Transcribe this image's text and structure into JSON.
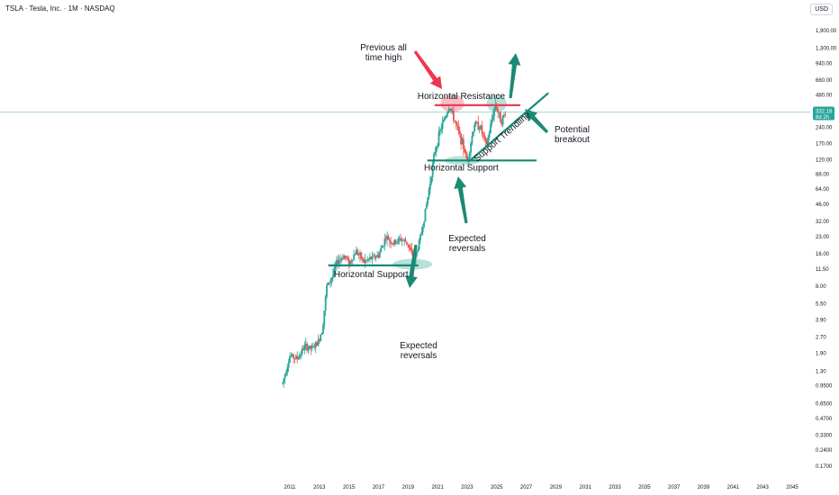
{
  "header": {
    "title": "TSLA · Tesla, Inc. · 1M · NASDAQ",
    "currency": "USD"
  },
  "chart_data": {
    "type": "candlestick",
    "title": "TSLA · Tesla, Inc. · 1M · NASDAQ",
    "y_scale": "log",
    "ylim": [
      0.15,
      3000
    ],
    "xlim": [
      2010.0,
      2046.0
    ],
    "y_ticks": [
      "1,900.00",
      "1,300.00",
      "940.00",
      "660.00",
      "480.00",
      "240.00",
      "170.00",
      "120.00",
      "88.00",
      "64.00",
      "46.00",
      "32.00",
      "23.00",
      "16.00",
      "11.50",
      "8.00",
      "5.50",
      "3.90",
      "2.70",
      "1.90",
      "1.30",
      "0.9500",
      "0.6500",
      "0.4700",
      "0.3300",
      "0.2400",
      "0.1700"
    ],
    "x_ticks": [
      "2011",
      "2013",
      "2015",
      "2017",
      "2019",
      "2021",
      "2023",
      "2025",
      "2027",
      "2029",
      "2031",
      "2033",
      "2035",
      "2037",
      "2039",
      "2041",
      "2043",
      "2045"
    ],
    "last_price": {
      "value": 332.18,
      "label": "332.18",
      "countdown": "8d 2h"
    },
    "price_series": [
      [
        2010.5,
        1.0
      ],
      [
        2011.0,
        1.8
      ],
      [
        2011.5,
        1.7
      ],
      [
        2012.0,
        2.2
      ],
      [
        2012.5,
        2.1
      ],
      [
        2012.9,
        2.4
      ],
      [
        2013.2,
        3.2
      ],
      [
        2013.5,
        8.0
      ],
      [
        2013.9,
        10.0
      ],
      [
        2014.2,
        13.5
      ],
      [
        2014.7,
        15.5
      ],
      [
        2015.0,
        13.0
      ],
      [
        2015.5,
        17.0
      ],
      [
        2016.0,
        13.5
      ],
      [
        2016.5,
        14.5
      ],
      [
        2017.0,
        15.5
      ],
      [
        2017.5,
        23.0
      ],
      [
        2018.0,
        20.0
      ],
      [
        2018.5,
        22.0
      ],
      [
        2019.0,
        20.0
      ],
      [
        2019.4,
        13.0
      ],
      [
        2019.9,
        25.0
      ],
      [
        2020.3,
        50.0
      ],
      [
        2020.8,
        140.0
      ],
      [
        2021.2,
        230.0
      ],
      [
        2021.8,
        380.0
      ],
      [
        2022.3,
        240.0
      ],
      [
        2022.8,
        150.0
      ],
      [
        2023.0,
        115.0
      ],
      [
        2023.5,
        260.0
      ],
      [
        2023.9,
        240.0
      ],
      [
        2024.3,
        160.0
      ],
      [
        2024.9,
        400.0
      ],
      [
        2025.3,
        270.0
      ],
      [
        2025.6,
        332.18
      ]
    ],
    "annotations": {
      "horizontal_resistance": {
        "label": "Horizontal Resistance",
        "price": 385.0,
        "x": [
          2020.8,
          2026.6
        ]
      },
      "horizontal_support_upper": {
        "label": "Horizontal Support",
        "price": 118.0,
        "x": [
          2020.3,
          2027.7
        ]
      },
      "horizontal_support_lower": {
        "label": "Horizontal Support",
        "price": 12.5,
        "x": [
          2013.6,
          2019.7
        ]
      },
      "support_trendline": {
        "label": "Support Trendline",
        "start": [
          2023.2,
          118.0
        ],
        "end": [
          2028.5,
          500.0
        ]
      },
      "previous_ath_text": [
        "Previous all",
        "time high"
      ],
      "expected_reversals_upper": [
        "Expected",
        "reversals"
      ],
      "expected_reversals_lower": [
        "Expected",
        "reversals"
      ],
      "potential_breakout": [
        "Potential",
        "breakout"
      ]
    }
  },
  "colors": {
    "up": "#26a69a",
    "down": "#ef5350",
    "arrow_green": "#1b8a74",
    "arrow_red": "#f0364d",
    "resistance_line": "#e83f55",
    "support_line": "#158a73",
    "highlight_green": "#a9d9cd",
    "highlight_red": "#f5a9b4",
    "price_tag": "#26a69a",
    "price_line": "#9bd3c7"
  }
}
